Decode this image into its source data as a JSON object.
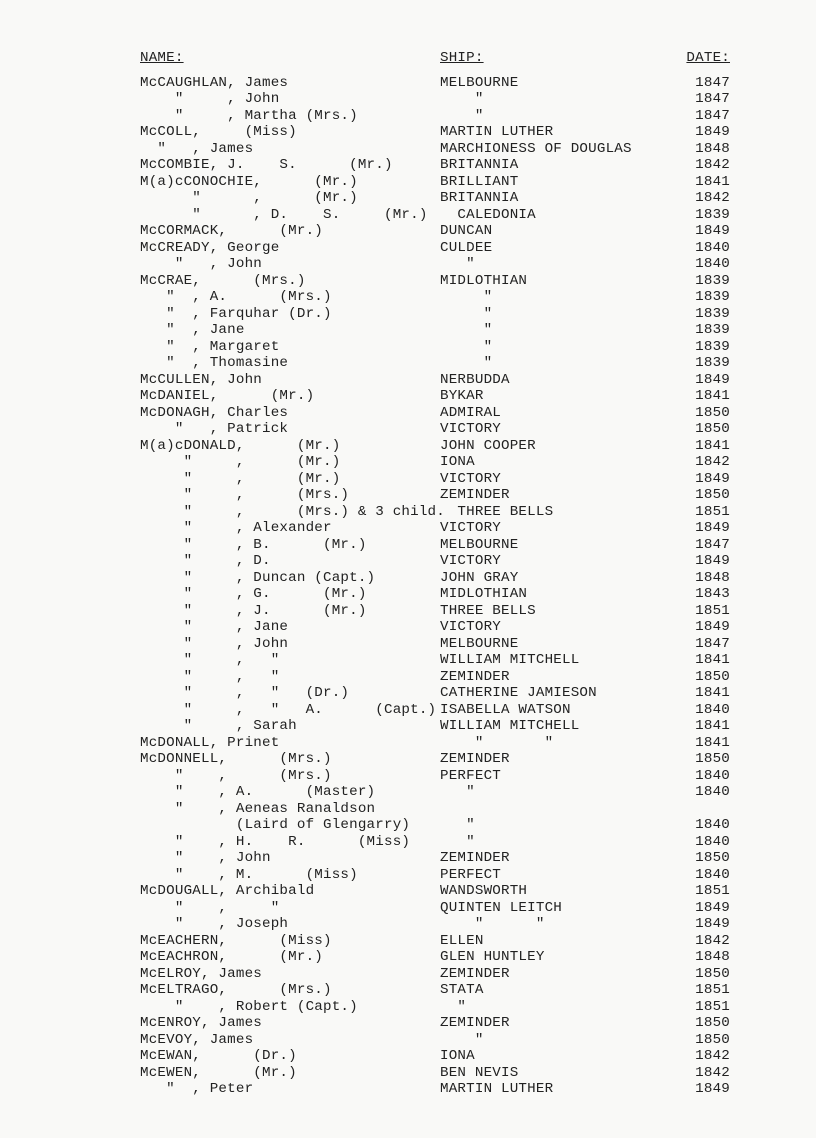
{
  "headers": {
    "name": "NAME:",
    "ship": "SHIP:",
    "date": "DATE:"
  },
  "rows": [
    {
      "name": "McCAUGHLAN, James",
      "ship": "MELBOURNE",
      "date": "1847"
    },
    {
      "name": "    \"     , John",
      "ship": "    \"",
      "date": "1847"
    },
    {
      "name": "    \"     , Martha (Mrs.)",
      "ship": "    \"",
      "date": "1847"
    },
    {
      "name": "McCOLL,     (Miss)",
      "ship": "MARTIN LUTHER",
      "date": "1849"
    },
    {
      "name": "  \"   , James",
      "ship": "MARCHIONESS OF DOUGLAS",
      "date": "1848"
    },
    {
      "name": "McCOMBIE, J.    S.      (Mr.)",
      "ship": "BRITANNIA",
      "date": "1842"
    },
    {
      "name": "M(a)cCONOCHIE,      (Mr.)",
      "ship": "BRILLIANT",
      "date": "1841"
    },
    {
      "name": "      \"      ,      (Mr.)",
      "ship": "BRITANNIA",
      "date": "1842"
    },
    {
      "name": "      \"      , D.    S.     (Mr.)",
      "ship": "  CALEDONIA",
      "date": "1839"
    },
    {
      "name": "McCORMACK,      (Mr.)",
      "ship": "DUNCAN",
      "date": "1849"
    },
    {
      "name": "McCREADY, George",
      "ship": "CULDEE",
      "date": "1840"
    },
    {
      "name": "    \"   , John",
      "ship": "   \"",
      "date": "1840"
    },
    {
      "name": "McCRAE,      (Mrs.)",
      "ship": "MIDLOTHIAN",
      "date": "1839"
    },
    {
      "name": "   \"  , A.      (Mrs.)",
      "ship": "     \"",
      "date": "1839"
    },
    {
      "name": "   \"  , Farquhar (Dr.)",
      "ship": "     \"",
      "date": "1839"
    },
    {
      "name": "   \"  , Jane",
      "ship": "     \"",
      "date": "1839"
    },
    {
      "name": "   \"  , Margaret",
      "ship": "     \"",
      "date": "1839"
    },
    {
      "name": "   \"  , Thomasine",
      "ship": "     \"",
      "date": "1839"
    },
    {
      "name": "McCULLEN, John",
      "ship": "NERBUDDA",
      "date": "1849"
    },
    {
      "name": "McDANIEL,      (Mr.)",
      "ship": "BYKAR",
      "date": "1841"
    },
    {
      "name": "McDONAGH, Charles",
      "ship": "ADMIRAL",
      "date": "1850"
    },
    {
      "name": "    \"   , Patrick",
      "ship": "VICTORY",
      "date": "1850"
    },
    {
      "name": "M(a)cDONALD,      (Mr.)",
      "ship": "JOHN COOPER",
      "date": "1841"
    },
    {
      "name": "     \"     ,      (Mr.)",
      "ship": "IONA",
      "date": "1842"
    },
    {
      "name": "     \"     ,      (Mr.)",
      "ship": "VICTORY",
      "date": "1849"
    },
    {
      "name": "     \"     ,      (Mrs.)",
      "ship": "ZEMINDER",
      "date": "1850"
    },
    {
      "name": "     \"     ,      (Mrs.) & 3 child.",
      "ship": "  THREE BELLS",
      "date": "1851"
    },
    {
      "name": "     \"     , Alexander",
      "ship": "VICTORY",
      "date": "1849"
    },
    {
      "name": "     \"     , B.      (Mr.)",
      "ship": "MELBOURNE",
      "date": "1847"
    },
    {
      "name": "     \"     , D.",
      "ship": "VICTORY",
      "date": "1849"
    },
    {
      "name": "     \"     , Duncan (Capt.)",
      "ship": "JOHN GRAY",
      "date": "1848"
    },
    {
      "name": "     \"     , G.      (Mr.)",
      "ship": "MIDLOTHIAN",
      "date": "1843"
    },
    {
      "name": "     \"     , J.      (Mr.)",
      "ship": "THREE BELLS",
      "date": "1851"
    },
    {
      "name": "     \"     , Jane",
      "ship": "VICTORY",
      "date": "1849"
    },
    {
      "name": "     \"     , John",
      "ship": "MELBOURNE",
      "date": "1847"
    },
    {
      "name": "     \"     ,   \"",
      "ship": "WILLIAM MITCHELL",
      "date": "1841"
    },
    {
      "name": "     \"     ,   \"",
      "ship": "ZEMINDER",
      "date": "1850"
    },
    {
      "name": "     \"     ,   \"   (Dr.)",
      "ship": "CATHERINE JAMIESON",
      "date": "1841"
    },
    {
      "name": "     \"     ,   \"   A.      (Capt.)",
      "ship": "ISABELLA WATSON",
      "date": "1840"
    },
    {
      "name": "     \"     , Sarah",
      "ship": "WILLIAM MITCHELL",
      "date": "1841"
    },
    {
      "name": "McDONALL, Prinet",
      "ship": "    \"       \"",
      "date": "1841"
    },
    {
      "name": "McDONNELL,      (Mrs.)",
      "ship": "ZEMINDER",
      "date": "1850"
    },
    {
      "name": "    \"    ,      (Mrs.)",
      "ship": "PERFECT",
      "date": "1840"
    },
    {
      "name": "    \"    , A.      (Master)",
      "ship": "   \"",
      "date": "1840"
    },
    {
      "name": "    \"    , Aeneas Ranaldson",
      "ship": "",
      "date": ""
    },
    {
      "name": "           (Laird of Glengarry)",
      "ship": "   \"",
      "date": "1840"
    },
    {
      "name": "    \"    , H.    R.      (Miss)",
      "ship": "   \"",
      "date": "1840"
    },
    {
      "name": "    \"    , John",
      "ship": "ZEMINDER",
      "date": "1850"
    },
    {
      "name": "    \"    , M.      (Miss)",
      "ship": "PERFECT",
      "date": "1840"
    },
    {
      "name": "McDOUGALL, Archibald",
      "ship": "WANDSWORTH",
      "date": "1851"
    },
    {
      "name": "    \"    ,     \"",
      "ship": "QUINTEN LEITCH",
      "date": "1849"
    },
    {
      "name": "    \"    , Joseph",
      "ship": "    \"      \"",
      "date": "1849"
    },
    {
      "name": "McEACHERN,      (Miss)",
      "ship": "ELLEN",
      "date": "1842"
    },
    {
      "name": "McEACHRON,      (Mr.)",
      "ship": "GLEN HUNTLEY",
      "date": "1848"
    },
    {
      "name": "McELROY, James",
      "ship": "ZEMINDER",
      "date": "1850"
    },
    {
      "name": "McELTRAGO,      (Mrs.)",
      "ship": "STATA",
      "date": "1851"
    },
    {
      "name": "    \"    , Robert (Capt.)",
      "ship": "  \"",
      "date": "1851"
    },
    {
      "name": "McENROY, James",
      "ship": "ZEMINDER",
      "date": "1850"
    },
    {
      "name": "McEVOY, James",
      "ship": "    \"",
      "date": "1850"
    },
    {
      "name": "McEWAN,      (Dr.)",
      "ship": "IONA",
      "date": "1842"
    },
    {
      "name": "McEWEN,      (Mr.)",
      "ship": "BEN NEVIS",
      "date": "1842"
    },
    {
      "name": "   \"  , Peter",
      "ship": "MARTIN LUTHER",
      "date": "1849"
    }
  ]
}
